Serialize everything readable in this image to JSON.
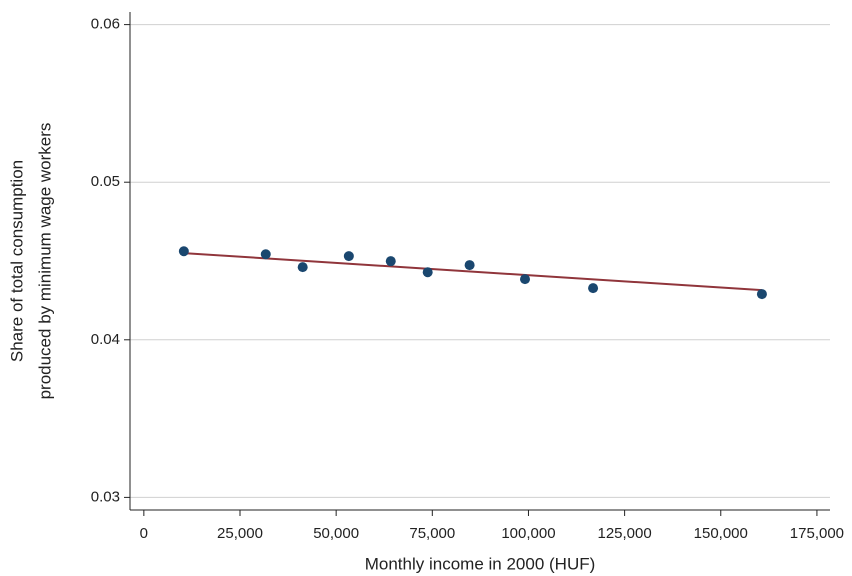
{
  "chart_data": {
    "type": "scatter",
    "x_label": "Monthly income in 2000 (HUF)",
    "y_label": [
      "Share of total consumption",
      "produced by minimum wage workers"
    ],
    "xlim": [
      -3600,
      178400
    ],
    "ylim": [
      0.0292,
      0.0608
    ],
    "xticks": [
      0,
      {
        "value": 25000,
        "label": "25,000"
      },
      {
        "value": 50000,
        "label": "50,000"
      },
      {
        "value": 75000,
        "label": "75,000"
      },
      {
        "value": 100000,
        "label": "100,000"
      },
      {
        "value": 125000,
        "label": "125,000"
      },
      {
        "value": 150000,
        "label": "150,000"
      },
      {
        "value": 175000,
        "label": "175,000"
      }
    ],
    "yticks": [
      0.03,
      0.04,
      0.05,
      0.06
    ],
    "grid": true,
    "series": [
      {
        "type": "scatter",
        "color": "#1a476f",
        "x": [
          10400,
          31700,
          41300,
          53300,
          64200,
          73800,
          84700,
          99100,
          116800,
          160700
        ],
        "values": [
          0.04562,
          0.04543,
          0.04461,
          0.04531,
          0.04499,
          0.04429,
          0.04474,
          0.04385,
          0.04328,
          0.0429
        ]
      },
      {
        "type": "line",
        "color": "#90353b",
        "x": [
          10400,
          160700
        ],
        "values": [
          0.0455,
          0.04315
        ]
      }
    ]
  }
}
